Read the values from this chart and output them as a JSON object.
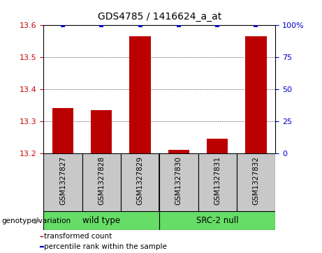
{
  "title": "GDS4785 / 1416624_a_at",
  "samples": [
    "GSM1327827",
    "GSM1327828",
    "GSM1327829",
    "GSM1327830",
    "GSM1327831",
    "GSM1327832"
  ],
  "transformed_counts": [
    13.34,
    13.335,
    13.565,
    13.21,
    13.245,
    13.565
  ],
  "percentile_ranks": [
    100,
    100,
    100,
    100,
    100,
    100
  ],
  "ylim_left": [
    13.2,
    13.6
  ],
  "ylim_right": [
    0,
    100
  ],
  "yticks_left": [
    13.2,
    13.3,
    13.4,
    13.5,
    13.6
  ],
  "yticks_right": [
    0,
    25,
    50,
    75,
    100
  ],
  "groups": [
    {
      "label": "wild type",
      "indices": [
        0,
        1,
        2
      ],
      "color": "#66DD66"
    },
    {
      "label": "SRC-2 null",
      "indices": [
        3,
        4,
        5
      ],
      "color": "#66DD66"
    }
  ],
  "group_boundary": 2.5,
  "bar_color": "#BB0000",
  "dot_color": "#0000CC",
  "bar_width": 0.55,
  "dot_size": 18,
  "legend_items": [
    {
      "color": "#BB0000",
      "label": "transformed count"
    },
    {
      "color": "#0000CC",
      "label": "percentile rank within the sample"
    }
  ],
  "genotype_label": "genotype/variation",
  "left_tick_color": "#CC0000",
  "right_tick_color": "#0000CC",
  "grid_style": "dotted",
  "grid_color": "#333333",
  "box_facecolor": "#C8C8C8",
  "box_edgecolor": "#000000"
}
